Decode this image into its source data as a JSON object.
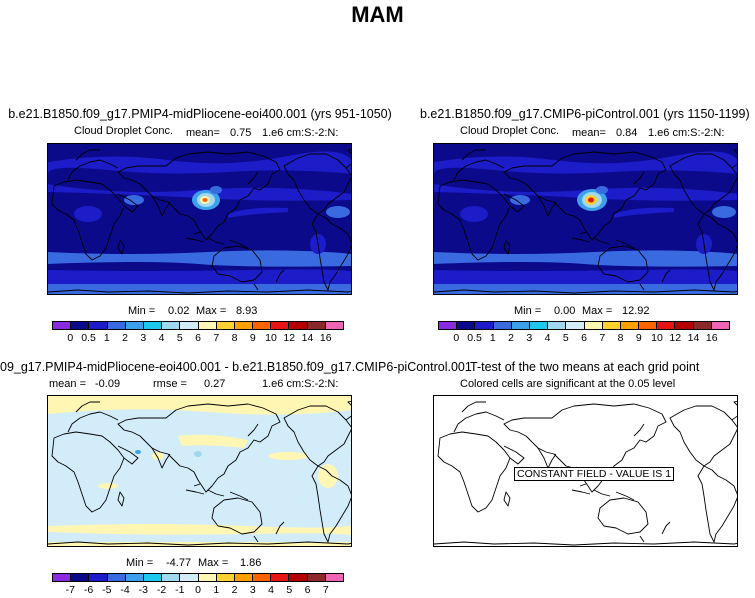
{
  "title": "MAM",
  "panels": [
    {
      "title": "b.e21.B1850.f09_g17.PMIP4-midPliocene-eoi400.001 (yrs 951-1050)",
      "variable": "Cloud Droplet Conc.",
      "mean_label": "mean=",
      "mean": "0.75",
      "units": "1.e6 cm:S:-2:N:",
      "min_label": "Min =",
      "min": "0.02",
      "max_label": "Max =",
      "max": "8.93"
    },
    {
      "title": "b.e21.B1850.f09_g17.CMIP6-piControl.001 (yrs 1150-1199)",
      "variable": "Cloud Droplet Conc.",
      "mean_label": "mean=",
      "mean": "0.84",
      "units": "1.e6 cm:S:-2:N:",
      "min_label": "Min =",
      "min": "0.00",
      "max_label": "Max =",
      "max": "12.92"
    },
    {
      "title": "09_g17.PMIP4-midPliocene-eoi400.001 - b.e21.B1850.f09_g17.CMIP6-piControl.001",
      "mean_label": "mean =",
      "mean": "-0.09",
      "rmse_label": "rmse =",
      "rmse": "0.27",
      "units": "1.e6 cm:S:-2:N:",
      "min_label": "Min =",
      "min": "-4.77",
      "max_label": "Max =",
      "max": "1.86"
    },
    {
      "title": "T-test of the two means at each grid point",
      "subtitle": "Colored cells are significant at the 0.05 level",
      "constant_field_label": "CONSTANT FIELD - VALUE IS 1"
    }
  ],
  "colorbar_abs": {
    "labels": [
      "0",
      "0.5",
      "1",
      "2",
      "3",
      "4",
      "5",
      "6",
      "7",
      "8",
      "9",
      "10",
      "12",
      "14",
      "16"
    ],
    "colors": [
      "#8a2be2",
      "#0a0a8a",
      "#1c1cc8",
      "#3a6ae0",
      "#3ca0ea",
      "#1ec8ec",
      "#a0d8f0",
      "#d2ecfa",
      "#fff6b4",
      "#ffd232",
      "#ffa000",
      "#ff6400",
      "#e61414",
      "#b40000",
      "#8c2828",
      "#f064b4"
    ]
  },
  "colorbar_diff": {
    "labels": [
      "-7",
      "-6",
      "-5",
      "-4",
      "-3",
      "-2",
      "-1",
      "0",
      "1",
      "2",
      "3",
      "4",
      "5",
      "6",
      "7"
    ],
    "colors": [
      "#8a2be2",
      "#0a0a8a",
      "#1c1cc8",
      "#3a6ae0",
      "#3ca0ea",
      "#1ec8ec",
      "#a0d8f0",
      "#d2ecfa",
      "#fff6b4",
      "#ffd232",
      "#ffa000",
      "#ff6400",
      "#e61414",
      "#b40000",
      "#8c2828",
      "#f064b4"
    ]
  }
}
